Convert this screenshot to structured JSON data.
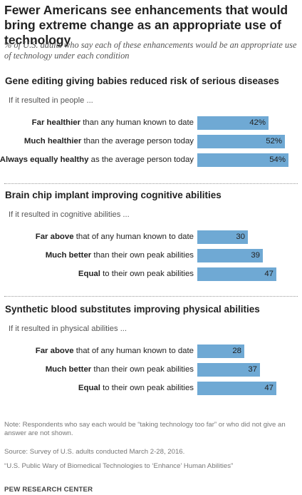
{
  "title": "Fewer Americans see enhancements that would bring extreme change as an appropriate use of technology",
  "subtitle": "% of U.S. adults who say each of these enhancements would be an appropriate use of technology under each condition",
  "chart_data": [
    {
      "type": "bar",
      "title": "Gene editing giving babies reduced risk of serious diseases",
      "condition": "If it resulted in people ...",
      "categories": [
        {
          "bold": "Far healthier",
          "rest": " than any human known to date"
        },
        {
          "bold": "Much healthier",
          "rest": " than the average person today"
        },
        {
          "bold": "Always equally healthy",
          "rest": " as the average person today"
        }
      ],
      "values": [
        42,
        52,
        54
      ],
      "value_labels": [
        "42%",
        "52%",
        "54%"
      ],
      "xlim": [
        0,
        54
      ]
    },
    {
      "type": "bar",
      "title": "Brain chip implant improving cognitive abilities",
      "condition": "If it resulted in cognitive abilities ...",
      "categories": [
        {
          "bold": "Far above",
          "rest": " that of any human known to date"
        },
        {
          "bold": "Much better",
          "rest": " than their own peak abilities"
        },
        {
          "bold": "Equal",
          "rest": " to their own peak abilities"
        }
      ],
      "values": [
        30,
        39,
        47
      ],
      "value_labels": [
        "30",
        "39",
        "47"
      ],
      "xlim": [
        0,
        54
      ]
    },
    {
      "type": "bar",
      "title": "Synthetic blood substitutes improving physical abilities",
      "condition": "If it resulted in physical abilities ...",
      "categories": [
        {
          "bold": "Far above",
          "rest": " that of any human known to date"
        },
        {
          "bold": "Much better",
          "rest": " than their own peak abilities"
        },
        {
          "bold": "Equal",
          "rest": " to their own peak abilities"
        }
      ],
      "values": [
        28,
        37,
        47
      ],
      "value_labels": [
        "28",
        "37",
        "47"
      ],
      "xlim": [
        0,
        54
      ]
    }
  ],
  "notes": {
    "note": "Note: Respondents who say each would be “taking technology too far” or who did not give an answer are not shown.",
    "source": "Source: Survey of U.S. adults conducted March 2-28, 2016.",
    "report": "“U.S. Public Wary of Biomedical Technologies to ‘Enhance’ Human Abilities”",
    "brand": "PEW RESEARCH CENTER"
  },
  "colors": {
    "bar": "#6fa9d4"
  }
}
